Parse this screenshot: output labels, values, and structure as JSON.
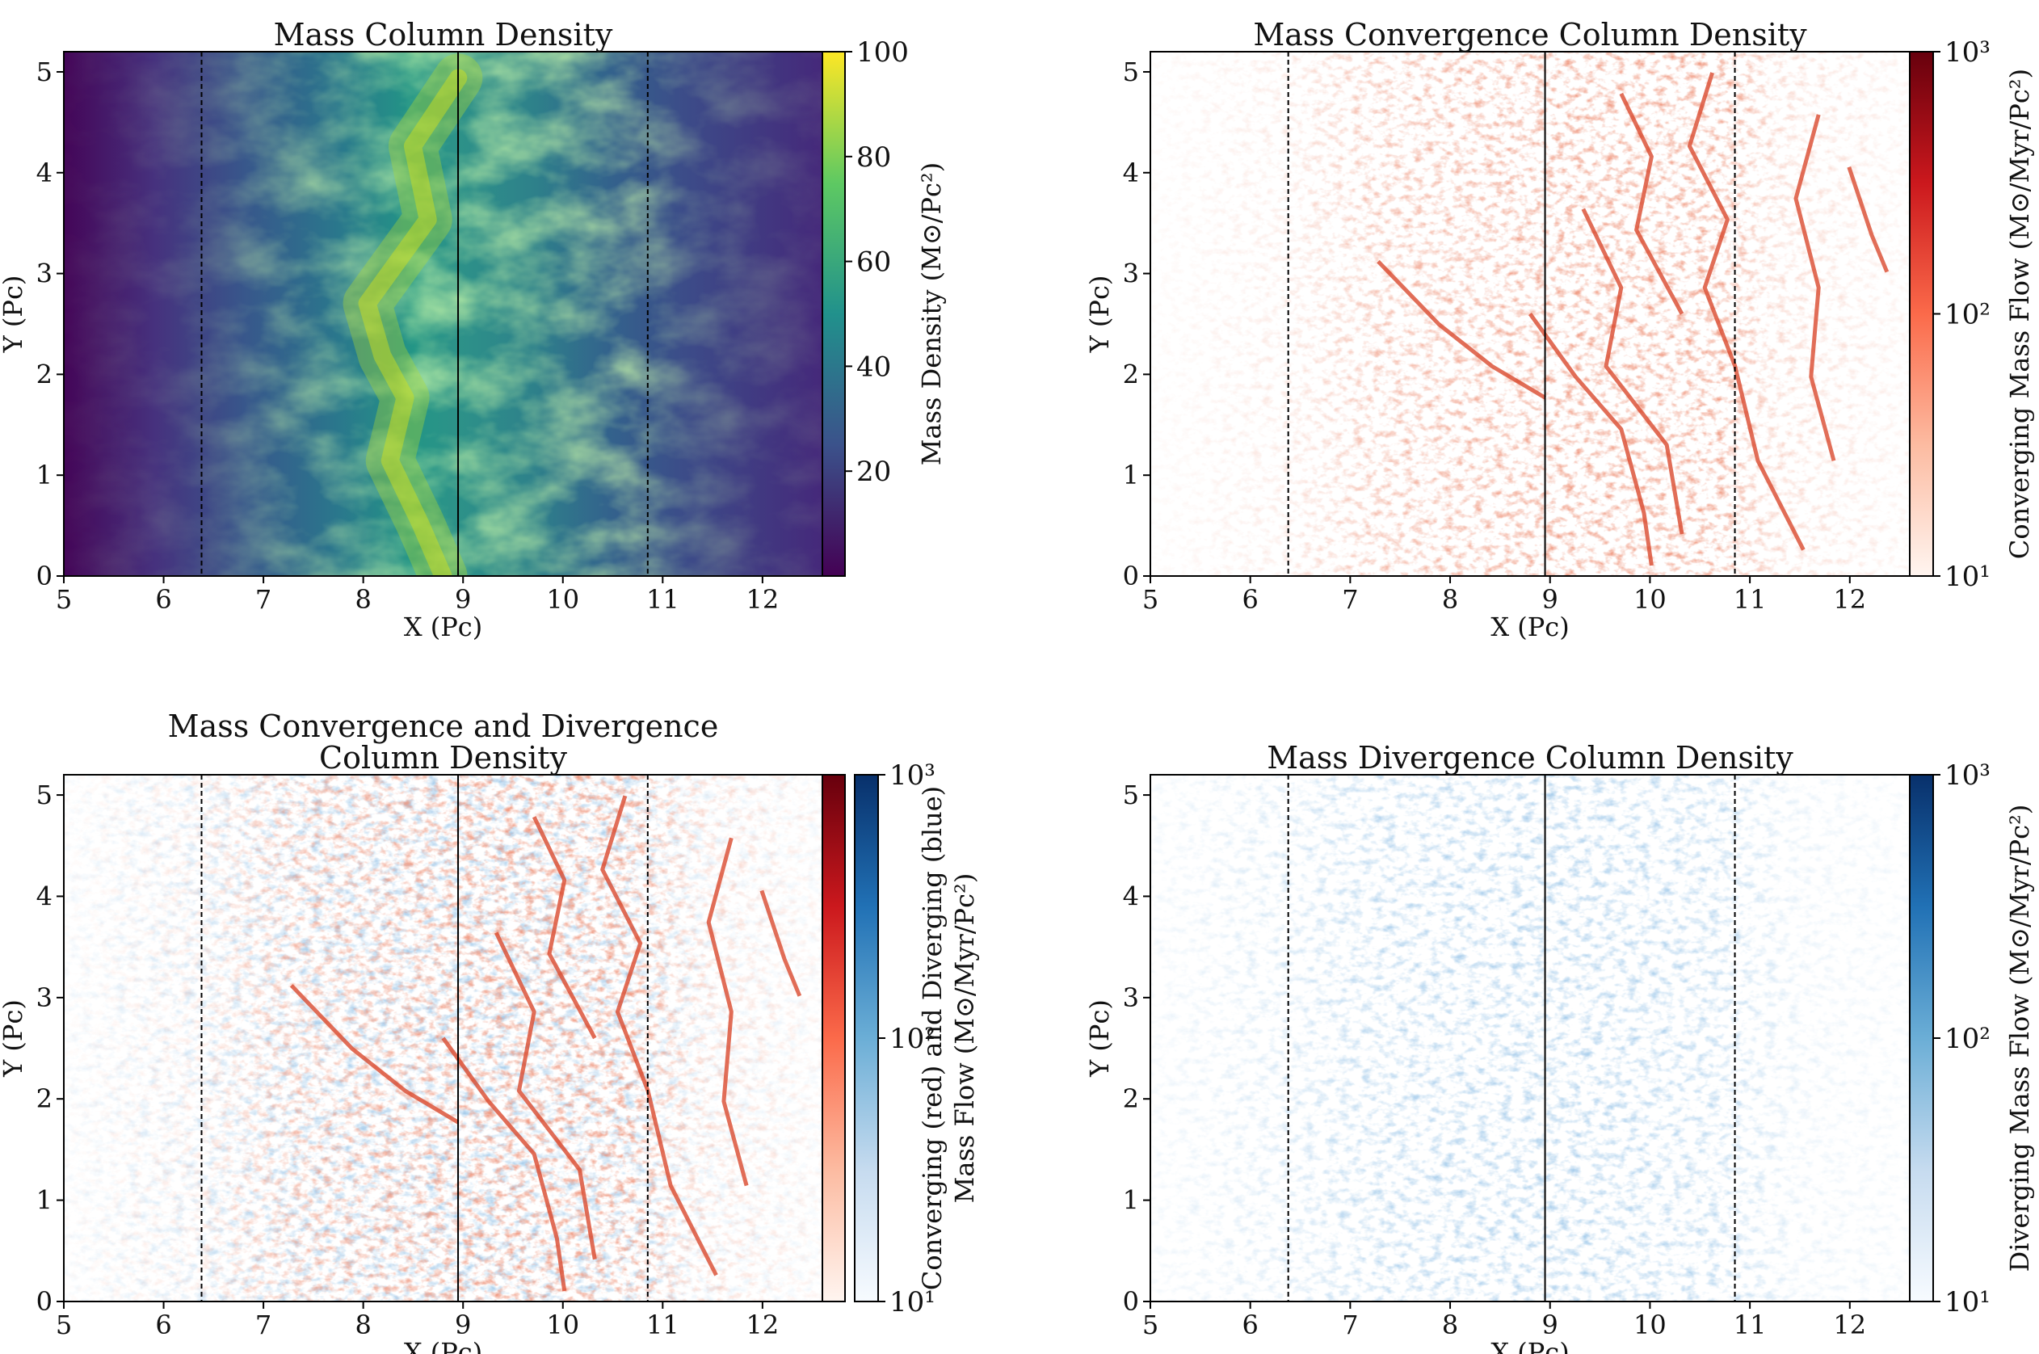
{
  "figure": "Four-panel column density maps",
  "colors": {
    "viridis": [
      "#440154",
      "#3b528b",
      "#21918c",
      "#5ec962",
      "#fde725"
    ],
    "reds": [
      "#fff5f0",
      "#fcbba1",
      "#fb6a4a",
      "#cb181d",
      "#67000d"
    ],
    "blues": [
      "#f7fbff",
      "#c6dbef",
      "#6baed6",
      "#2171b5",
      "#08306b"
    ]
  },
  "chart_data": [
    {
      "type": "heatmap",
      "id": "panel-mass-density",
      "title": [
        "Mass Column Density"
      ],
      "xlabel": "X (Pc)",
      "ylabel": "Y (Pc)",
      "xlim": [
        5,
        12.6
      ],
      "ylim": [
        0,
        5.2
      ],
      "xticks": [
        5,
        6,
        7,
        8,
        9,
        10,
        11,
        12
      ],
      "yticks": [
        0,
        1,
        2,
        3,
        4,
        5
      ],
      "vlines": [
        {
          "x": 6.38,
          "style": "dashed"
        },
        {
          "x": 8.95,
          "style": "solid"
        },
        {
          "x": 10.85,
          "style": "dashed"
        }
      ],
      "colormap": "viridis",
      "colorbar": {
        "scale": "linear",
        "range": [
          0,
          100
        ],
        "ticks": [
          {
            "v": 20,
            "label": "20"
          },
          {
            "v": 40,
            "label": "40"
          },
          {
            "v": 60,
            "label": "60"
          },
          {
            "v": 80,
            "label": "80"
          },
          {
            "v": 100,
            "label": "100"
          }
        ],
        "label": "Mass Density (M⊙/Pc²)"
      }
    },
    {
      "type": "heatmap",
      "id": "panel-convergence",
      "title": [
        "Mass Convergence Column Density"
      ],
      "xlabel": "X (Pc)",
      "ylabel": "Y (Pc)",
      "xlim": [
        5,
        12.6
      ],
      "ylim": [
        0,
        5.2
      ],
      "xticks": [
        5,
        6,
        7,
        8,
        9,
        10,
        11,
        12
      ],
      "yticks": [
        0,
        1,
        2,
        3,
        4,
        5
      ],
      "vlines": [
        {
          "x": 6.38,
          "style": "dashed"
        },
        {
          "x": 8.95,
          "style": "solid"
        },
        {
          "x": 10.85,
          "style": "dashed"
        }
      ],
      "colormap": "reds",
      "colorbar": {
        "scale": "log",
        "range": [
          10,
          1000
        ],
        "ticks": [
          {
            "v": 10,
            "label": "10¹"
          },
          {
            "v": 100,
            "label": "10²"
          },
          {
            "v": 1000,
            "label": "10³"
          }
        ],
        "label": "Converging Mass Flow (M⊙/Myr/Pc²)"
      }
    },
    {
      "type": "heatmap",
      "id": "panel-conv-div",
      "title": [
        "Mass Convergence and Divergence",
        "Column Density"
      ],
      "xlabel": "X (Pc)",
      "ylabel": "Y (Pc)",
      "xlim": [
        5,
        12.6
      ],
      "ylim": [
        0,
        5.2
      ],
      "xticks": [
        5,
        6,
        7,
        8,
        9,
        10,
        11,
        12
      ],
      "yticks": [
        0,
        1,
        2,
        3,
        4,
        5
      ],
      "vlines": [
        {
          "x": 6.38,
          "style": "dashed"
        },
        {
          "x": 8.95,
          "style": "solid"
        },
        {
          "x": 10.85,
          "style": "dashed"
        }
      ],
      "colormap": "reds+blues",
      "colorbar": {
        "scale": "log",
        "range": [
          10,
          1000
        ],
        "ticks": [
          {
            "v": 10,
            "label": "10¹"
          },
          {
            "v": 100,
            "label": "10²"
          },
          {
            "v": 1000,
            "label": "10³"
          }
        ],
        "label": [
          "Converging (red) and Diverging (blue)",
          "Mass Flow (M⊙/Myr/Pc²)"
        ]
      }
    },
    {
      "type": "heatmap",
      "id": "panel-divergence",
      "title": [
        "Mass Divergence Column Density"
      ],
      "xlabel": "X (Pc)",
      "ylabel": "Y (Pc)",
      "xlim": [
        5,
        12.6
      ],
      "ylim": [
        0,
        5.2
      ],
      "xticks": [
        5,
        6,
        7,
        8,
        9,
        10,
        11,
        12
      ],
      "yticks": [
        0,
        1,
        2,
        3,
        4,
        5
      ],
      "vlines": [
        {
          "x": 6.38,
          "style": "dashed"
        },
        {
          "x": 8.95,
          "style": "solid"
        },
        {
          "x": 10.85,
          "style": "dashed"
        }
      ],
      "colormap": "blues",
      "colorbar": {
        "scale": "log",
        "range": [
          10,
          1000
        ],
        "ticks": [
          {
            "v": 10,
            "label": "10¹"
          },
          {
            "v": 100,
            "label": "10²"
          },
          {
            "v": 1000,
            "label": "10³"
          }
        ],
        "label": "Diverging Mass Flow (M⊙/Myr/Pc²)"
      }
    }
  ]
}
